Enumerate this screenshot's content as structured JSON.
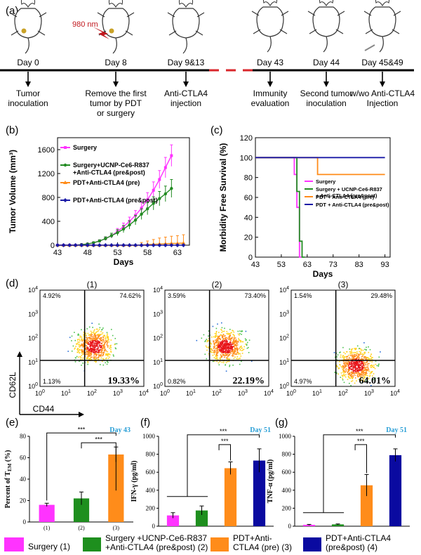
{
  "panel_letters": [
    "(a)",
    "(b)",
    "(c)",
    "(d)",
    "(e)",
    "(f)",
    "(g)"
  ],
  "timeline": {
    "laser_label": "980 nm",
    "events": [
      {
        "day": "Day 0",
        "desc": [
          "Tumor",
          "inoculation"
        ]
      },
      {
        "day": "Day 8",
        "desc": [
          "Remove the first",
          "tumor by PDT",
          "or surgery"
        ]
      },
      {
        "day": "Day 9&13",
        "desc": [
          "Anti-CTLA4",
          "injection"
        ]
      },
      {
        "day": "Day 43",
        "desc": [
          "Immunity",
          "evaluation"
        ]
      },
      {
        "day": "Day 44",
        "desc": [
          "Second tumor",
          "inoculation"
        ]
      },
      {
        "day": "Day 45&49",
        "desc": [
          "w/wo Anti-CTLA4",
          "Injection"
        ]
      }
    ]
  },
  "colors": {
    "surgery": "#ff33ff",
    "surgery_ucnp": "#228b22",
    "pdt_pre": "#ff8c1a",
    "pdt_prepost": "#1a1aa6",
    "bar_magenta": "#ff33ff",
    "bar_green": "#1e8f1e",
    "bar_orange": "#ff8c1a",
    "bar_navy": "#0a0aa0",
    "day_label": "#2a9fd6"
  },
  "chart_data": [
    {
      "panel": "(b)",
      "type": "line",
      "xlabel": "Days",
      "ylabel": "Tumor Volume (mm³)",
      "xlim": [
        43,
        65
      ],
      "ylim": [
        0,
        1800
      ],
      "xticks": [
        "43",
        "48",
        "53",
        "58",
        "63"
      ],
      "yticks": [
        "0",
        "400",
        "800",
        "1200",
        "1600"
      ],
      "legend_position": "top-left",
      "series": [
        {
          "name": "Surgery",
          "color_key": "surgery",
          "marker": "square",
          "x": [
            43,
            44,
            45,
            46,
            47,
            48,
            49,
            50,
            51,
            52,
            53,
            54,
            55,
            56,
            57,
            58,
            59,
            60,
            61,
            62
          ],
          "y": [
            0,
            0,
            0,
            0,
            10,
            20,
            40,
            70,
            110,
            160,
            230,
            310,
            400,
            500,
            620,
            760,
            920,
            1100,
            1300,
            1500
          ],
          "err": [
            0,
            0,
            0,
            0,
            5,
            10,
            15,
            20,
            30,
            40,
            50,
            60,
            70,
            80,
            100,
            120,
            140,
            150,
            170,
            180
          ]
        },
        {
          "name": "Surgery+UCNP-Ce6-R837\n+Anti-CTLA4 (pre&post)",
          "color_key": "surgery_ucnp",
          "marker": "circle",
          "x": [
            43,
            44,
            45,
            46,
            47,
            48,
            49,
            50,
            51,
            52,
            53,
            54,
            55,
            56,
            57,
            58,
            59,
            60,
            61,
            62
          ],
          "y": [
            0,
            0,
            0,
            0,
            10,
            20,
            40,
            70,
            110,
            160,
            210,
            270,
            340,
            420,
            520,
            610,
            700,
            780,
            860,
            950
          ],
          "err": [
            0,
            0,
            0,
            0,
            5,
            10,
            15,
            20,
            30,
            40,
            50,
            60,
            70,
            80,
            90,
            100,
            110,
            120,
            130,
            150
          ]
        },
        {
          "name": "PDT+Anti-CTLA4 (pre)",
          "color_key": "pdt_pre",
          "marker": "triangle",
          "x": [
            43,
            44,
            45,
            46,
            47,
            48,
            49,
            50,
            51,
            52,
            53,
            54,
            55,
            56,
            57,
            58,
            59,
            60,
            61,
            62,
            63,
            64
          ],
          "y": [
            0,
            0,
            0,
            0,
            0,
            0,
            0,
            0,
            0,
            0,
            0,
            0,
            0,
            0,
            5,
            10,
            15,
            20,
            25,
            30,
            30,
            35
          ],
          "err": [
            0,
            0,
            0,
            0,
            0,
            0,
            0,
            0,
            0,
            0,
            0,
            0,
            0,
            0,
            40,
            60,
            80,
            100,
            110,
            120,
            130,
            140
          ]
        },
        {
          "name": "PDT+Anti-CTLA4 (pre&post)",
          "color_key": "pdt_prepost",
          "marker": "diamond",
          "x": [
            43,
            44,
            45,
            46,
            47,
            48,
            49,
            50,
            51,
            52,
            53,
            54,
            55,
            56,
            57,
            58,
            59,
            60,
            61,
            62,
            63,
            64
          ],
          "y": [
            0,
            0,
            0,
            0,
            0,
            0,
            0,
            0,
            0,
            0,
            0,
            0,
            0,
            0,
            0,
            0,
            0,
            0,
            0,
            0,
            0,
            0
          ],
          "err": [
            0,
            0,
            0,
            0,
            0,
            0,
            0,
            0,
            0,
            0,
            0,
            0,
            0,
            0,
            0,
            0,
            0,
            0,
            0,
            0,
            0,
            0
          ]
        }
      ]
    },
    {
      "panel": "(c)",
      "type": "line",
      "xlabel": "Days",
      "ylabel": "Morbidity Free Survival (%)",
      "xlim": [
        43,
        95
      ],
      "ylim": [
        0,
        120
      ],
      "xticks": [
        "43",
        "53",
        "63",
        "73",
        "83",
        "93"
      ],
      "yticks": [
        "0",
        "20",
        "40",
        "60",
        "80",
        "100",
        "120"
      ],
      "legend_position": "center-right",
      "series": [
        {
          "name": "Surgery",
          "color_key": "surgery",
          "x": [
            43,
            58,
            58,
            59,
            59,
            60,
            60,
            61
          ],
          "y": [
            100,
            100,
            83,
            83,
            50,
            50,
            0,
            0
          ]
        },
        {
          "name": "Surgery + UCNP-Ce6-R837\n+ Anti-CTLA4 (pre&post)",
          "color_key": "surgery_ucnp",
          "x": [
            43,
            59,
            59,
            60,
            60,
            61,
            61,
            62
          ],
          "y": [
            100,
            100,
            66,
            66,
            16,
            16,
            0,
            0
          ]
        },
        {
          "name": "PDT + Anti-CTLA4 (pre)",
          "color_key": "pdt_pre",
          "x": [
            43,
            67,
            67,
            93
          ],
          "y": [
            100,
            100,
            83,
            83
          ]
        },
        {
          "name": "PDT + Anti-CTLA4 (pre&post)",
          "color_key": "pdt_prepost",
          "x": [
            43,
            93
          ],
          "y": [
            100,
            100
          ]
        }
      ]
    },
    {
      "panel": "(e)",
      "type": "bar",
      "title": "Day 43",
      "ylabel": "Percent of T",
      "ylabel_sub": "EM",
      "ylabel_tail": " (%)",
      "ylim": [
        0,
        80
      ],
      "yticks": [
        "0",
        "20",
        "40",
        "60",
        "80"
      ],
      "categories": [
        "(1)",
        "(2)",
        "(3)"
      ],
      "values": [
        16,
        22,
        63
      ],
      "errors": [
        1.5,
        6,
        7
      ],
      "bar_color_keys": [
        "bar_magenta",
        "bar_green",
        "bar_orange"
      ],
      "significance": [
        "***",
        "***"
      ]
    },
    {
      "panel": "(f)",
      "type": "bar",
      "title": "Day 51",
      "ylabel": "IFN-γ (pg/ml)",
      "ylim": [
        0,
        1000
      ],
      "yticks": [
        "0",
        "200",
        "400",
        "600",
        "800",
        "1000"
      ],
      "values": [
        120,
        175,
        645,
        730
      ],
      "errors": [
        30,
        50,
        70,
        130
      ],
      "bar_color_keys": [
        "bar_magenta",
        "bar_green",
        "bar_orange",
        "bar_navy"
      ],
      "significance": [
        "***",
        "***"
      ]
    },
    {
      "panel": "(g)",
      "type": "bar",
      "title": "Day 51",
      "ylabel": "TNF-α (pg/ml)",
      "ylim": [
        0,
        1000
      ],
      "yticks": [
        "0",
        "200",
        "400",
        "600",
        "800",
        "1000"
      ],
      "values": [
        15,
        20,
        455,
        790
      ],
      "errors": [
        5,
        5,
        120,
        70
      ],
      "bar_color_keys": [
        "bar_magenta",
        "bar_green",
        "bar_orange",
        "bar_navy"
      ],
      "significance": [
        "***",
        "***"
      ]
    }
  ],
  "flow": {
    "ylabel": "CD62L",
    "xlabel": "CD44",
    "axis_ticks": [
      "10",
      "10",
      "10",
      "10",
      "10"
    ],
    "tick_exps": [
      "0",
      "1",
      "2",
      "3",
      "4"
    ],
    "plots": [
      {
        "label": "(1)",
        "ul": "4.92%",
        "ur": "74.62%",
        "ll": "1.13%",
        "lr": "19.33%",
        "density_x": 0.52,
        "density_y": 0.42
      },
      {
        "label": "(2)",
        "ul": "3.59%",
        "ur": "73.40%",
        "ll": "0.82%",
        "lr": "22.19%",
        "density_x": 0.58,
        "density_y": 0.42
      },
      {
        "label": "(3)",
        "ul": "1.54%",
        "ur": "29.48%",
        "ll": "4.97%",
        "lr": "64.01%",
        "density_x": 0.62,
        "density_y": 0.22
      }
    ]
  },
  "legend_bottom": [
    {
      "label": "Surgery (1)",
      "color_key": "bar_magenta"
    },
    {
      "label": "Surgery +UCNP-Ce6-R837\n+Anti-CTLA4 (pre&post) (2)",
      "color_key": "bar_green"
    },
    {
      "label": "PDT+Anti-\nCTLA4 (pre) (3)",
      "color_key": "bar_orange"
    },
    {
      "label": "PDT+Anti-CTLA4\n(pre&post) (4)",
      "color_key": "bar_navy"
    }
  ]
}
